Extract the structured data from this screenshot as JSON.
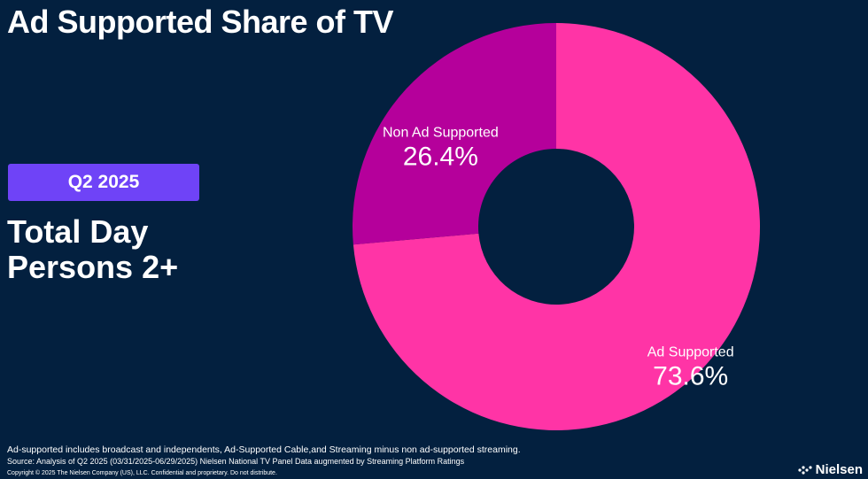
{
  "header": {
    "title": "Ad Supported Share of TV"
  },
  "badge": {
    "label": "Q2 2025"
  },
  "subtitle": {
    "line1": "Total Day",
    "line2": "Persons 2+"
  },
  "chart_data": {
    "type": "pie",
    "donut": true,
    "title": "Ad Supported Share of TV",
    "slices": [
      {
        "label": "Ad Supported",
        "value": 73.6,
        "display": "73.6%",
        "color": "#ff34a6"
      },
      {
        "label": "Non Ad Supported",
        "value": 26.4,
        "display": "26.4%",
        "color": "#b5009b"
      }
    ],
    "legend": "none"
  },
  "footer": {
    "note1": "Ad-supported includes broadcast and independents, Ad-Supported Cable,and Streaming minus non ad-supported streaming.",
    "note2": "Source: Analysis of Q2 2025 (03/31/2025-06/29/2025)  Nielsen National TV Panel Data augmented by Streaming Platform Ratings",
    "note3": "Copyright © 2025 The Nielsen Company (US), LLC. Confidential and proprietary. Do not distribute.",
    "brand": "Nielsen",
    "brand_icon": "nielsen-dots-icon"
  }
}
